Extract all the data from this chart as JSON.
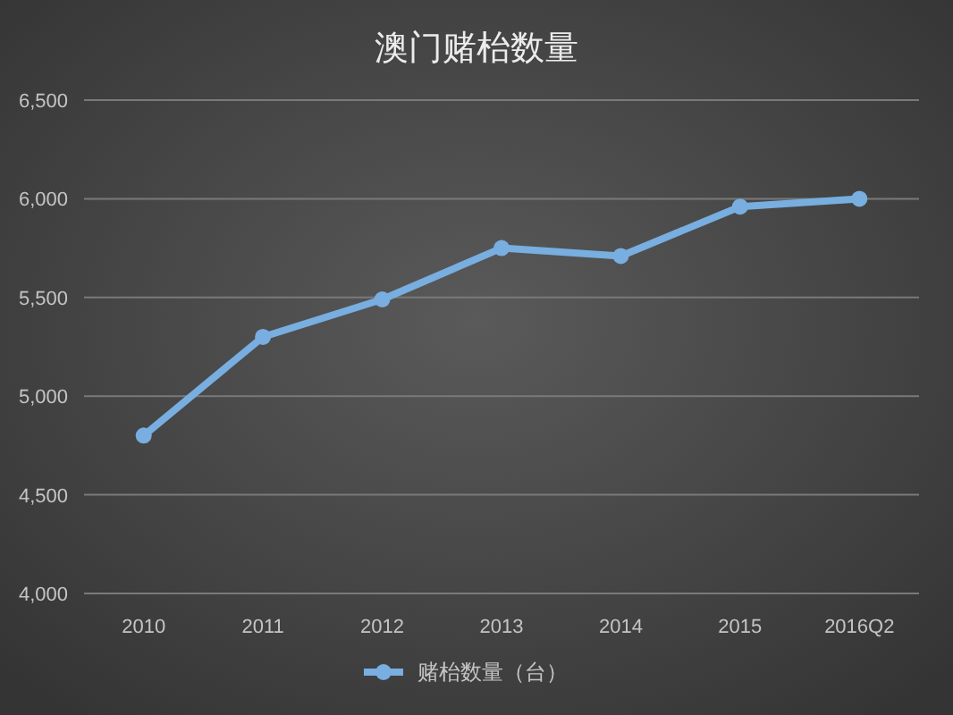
{
  "chart_data": {
    "type": "line",
    "title": "澳门赌枱数量",
    "categories": [
      "2010",
      "2011",
      "2012",
      "2013",
      "2014",
      "2015",
      "2016Q2"
    ],
    "series": [
      {
        "name": "赌枱数量（台）",
        "color": "#78aee0",
        "values": [
          4800,
          5300,
          5490,
          5750,
          5710,
          5960,
          6000
        ]
      }
    ],
    "ylim": [
      4000,
      6500
    ],
    "yticks": [
      {
        "value": 4000,
        "label": "4,000"
      },
      {
        "value": 4500,
        "label": "4,500"
      },
      {
        "value": 5000,
        "label": "5,000"
      },
      {
        "value": 5500,
        "label": "5,500"
      },
      {
        "value": 6000,
        "label": "6,000"
      },
      {
        "value": 6500,
        "label": "6,500"
      }
    ],
    "grid": "y",
    "legend": "bottom",
    "marker": "circle",
    "line_style": "solid"
  }
}
